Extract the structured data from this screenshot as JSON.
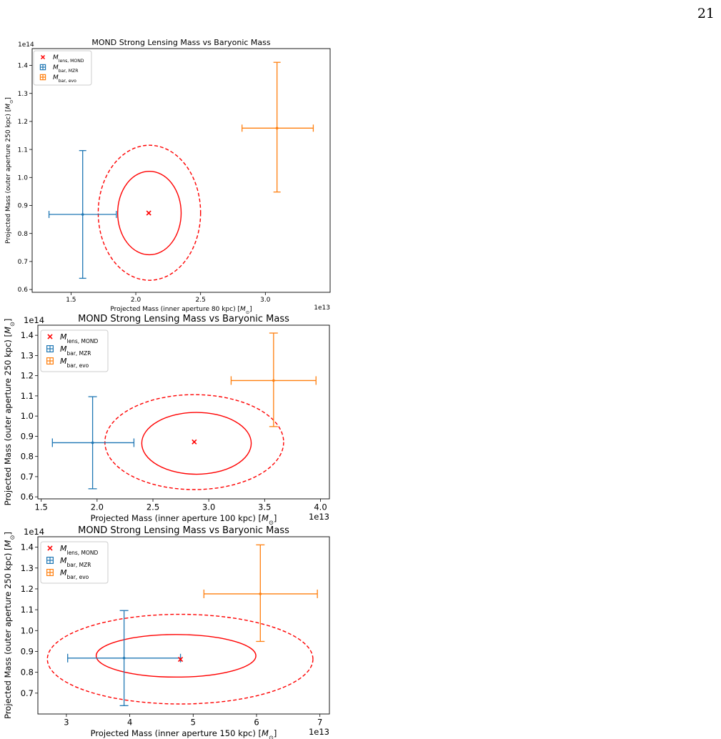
{
  "page": {
    "number": "21"
  },
  "chart_data": [
    {
      "type": "scatter",
      "title": "MOND Strong Lensing Mass vs Baryonic Mass",
      "xlabel": "Projected Mass (inner aperture 80 kpc) [$M_{\\odot}$]",
      "ylabel": "Projected Mass (outer aperture 250 kpc) [$M_{\\odot}$]",
      "x_offset_label": "1e13",
      "y_offset_label": "1e14",
      "xlim": [
        1.2,
        3.5
      ],
      "ylim": [
        0.59,
        1.46
      ],
      "xticks": [
        "1.5",
        "2.0",
        "2.5",
        "3.0"
      ],
      "yticks": [
        "0.6",
        "0.7",
        "0.8",
        "0.9",
        "1.0",
        "1.1",
        "1.2",
        "1.3",
        "1.4"
      ],
      "legend_position": "top-left",
      "legend": [
        {
          "main": "M",
          "sub": "lens, MOND",
          "color": "#ff0000",
          "marker": "x"
        },
        {
          "main": "M",
          "sub": "bar, MZR",
          "color": "#1f77b4",
          "marker": "errorbar"
        },
        {
          "main": "M",
          "sub": "bar, evo",
          "color": "#ff7f0e",
          "marker": "errorbar"
        }
      ],
      "lens_point": {
        "x": 2.1,
        "y": 0.873,
        "color": "#ff0000"
      },
      "errorbars": [
        {
          "name": "bar, MZR",
          "color": "#1f77b4",
          "x": 1.59,
          "y": 0.868,
          "x_range": [
            1.33,
            1.85
          ],
          "y_range": [
            0.64,
            1.096
          ]
        },
        {
          "name": "bar, evo",
          "color": "#ff7f0e",
          "x": 3.09,
          "y": 1.176,
          "x_range": [
            2.82,
            3.37
          ],
          "y_range": [
            0.948,
            1.411
          ]
        }
      ],
      "contours": [
        {
          "level": "inner",
          "style": "solid",
          "color": "#ff0000",
          "center": [
            2.2,
            0.873
          ],
          "x_range": [
            1.86,
            2.35
          ],
          "y_range": [
            0.724,
            1.022
          ]
        },
        {
          "level": "outer",
          "style": "dashed",
          "color": "#ff0000",
          "center": [
            2.11,
            0.873
          ],
          "x_range": [
            1.71,
            2.5
          ],
          "y_range": [
            0.633,
            1.115
          ]
        }
      ]
    },
    {
      "type": "scatter",
      "title": "MOND Strong Lensing Mass vs Baryonic Mass",
      "xlabel": "Projected Mass (inner aperture 100 kpc) [$M_{\\odot}$]",
      "ylabel": "Projected Mass (outer aperture 250 kpc) [$M_{\\odot}$]",
      "x_offset_label": "1e13",
      "y_offset_label": "1e14",
      "xlim": [
        1.47,
        4.08
      ],
      "ylim": [
        0.59,
        1.45
      ],
      "xticks": [
        "1.5",
        "2.0",
        "2.5",
        "3.0",
        "3.5",
        "4.0"
      ],
      "yticks": [
        "0.6",
        "0.7",
        "0.8",
        "0.9",
        "1.0",
        "1.1",
        "1.2",
        "1.3",
        "1.4"
      ],
      "legend_position": "top-left",
      "legend": [
        {
          "main": "M",
          "sub": "lens, MOND",
          "color": "#ff0000",
          "marker": "x"
        },
        {
          "main": "M",
          "sub": "bar, MZR",
          "color": "#1f77b4",
          "marker": "errorbar"
        },
        {
          "main": "M",
          "sub": "bar, evo",
          "color": "#ff7f0e",
          "marker": "errorbar"
        }
      ],
      "lens_point": {
        "x": 2.87,
        "y": 0.872,
        "color": "#ff0000"
      },
      "errorbars": [
        {
          "name": "bar, MZR",
          "color": "#1f77b4",
          "x": 1.96,
          "y": 0.868,
          "x_range": [
            1.6,
            2.33
          ],
          "y_range": [
            0.64,
            1.096
          ]
        },
        {
          "name": "bar, evo",
          "color": "#ff7f0e",
          "x": 3.58,
          "y": 1.176,
          "x_range": [
            3.2,
            3.96
          ],
          "y_range": [
            0.948,
            1.411
          ]
        }
      ],
      "contours": [
        {
          "level": "inner",
          "style": "solid",
          "color": "#ff0000",
          "center": [
            2.89,
            0.865
          ],
          "x_range": [
            2.4,
            3.38
          ],
          "y_range": [
            0.712,
            1.018
          ]
        },
        {
          "level": "outer",
          "style": "dashed",
          "color": "#ff0000",
          "center": [
            2.87,
            0.869
          ],
          "x_range": [
            2.07,
            3.67
          ],
          "y_range": [
            0.636,
            1.106
          ]
        }
      ]
    },
    {
      "type": "scatter",
      "title": "MOND Strong Lensing Mass vs Baryonic Mass",
      "xlabel": "Projected Mass (inner aperture 150 kpc) [$M_{\\odot}$]",
      "ylabel": "Projected Mass (outer aperture 250 kpc) [$M_{\\odot}$]",
      "x_offset_label": "1e13",
      "y_offset_label": "1e14",
      "xlim": [
        2.55,
        7.15
      ],
      "ylim": [
        0.6,
        1.45
      ],
      "xticks": [
        "3",
        "4",
        "5",
        "6",
        "7"
      ],
      "yticks": [
        "0.7",
        "0.8",
        "0.9",
        "1.0",
        "1.1",
        "1.2",
        "1.3",
        "1.4"
      ],
      "legend_position": "top-left",
      "legend": [
        {
          "main": "M",
          "sub": "lens, MOND",
          "color": "#ff0000",
          "marker": "x"
        },
        {
          "main": "M",
          "sub": "bar, MZR",
          "color": "#1f77b4",
          "marker": "errorbar"
        },
        {
          "main": "M",
          "sub": "bar, evo",
          "color": "#ff7f0e",
          "marker": "errorbar"
        }
      ],
      "lens_point": {
        "x": 4.8,
        "y": 0.862,
        "color": "#ff0000"
      },
      "errorbars": [
        {
          "name": "bar, MZR",
          "color": "#1f77b4",
          "x": 3.91,
          "y": 0.868,
          "x_range": [
            3.02,
            4.8
          ],
          "y_range": [
            0.64,
            1.096
          ]
        },
        {
          "name": "bar, evo",
          "color": "#ff7f0e",
          "x": 6.06,
          "y": 1.176,
          "x_range": [
            5.17,
            6.96
          ],
          "y_range": [
            0.948,
            1.411
          ]
        }
      ],
      "contours": [
        {
          "level": "inner",
          "style": "solid",
          "color": "#ff0000",
          "center": [
            4.73,
            0.864
          ],
          "x_range": [
            3.47,
            5.99
          ],
          "y_range": [
            0.777,
            0.981
          ]
        },
        {
          "level": "outer",
          "style": "dashed",
          "color": "#ff0000",
          "center": [
            4.73,
            0.863
          ],
          "x_range": [
            2.7,
            6.89
          ],
          "y_range": [
            0.648,
            1.078
          ]
        }
      ]
    }
  ]
}
